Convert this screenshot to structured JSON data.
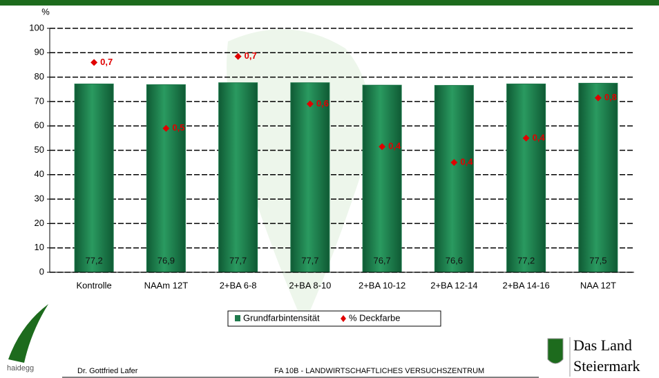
{
  "chart_data": {
    "type": "bar",
    "y_label": "%",
    "categories": [
      "Kontrolle",
      "NAAm 12T",
      "2+BA 6-8",
      "2+BA 8-10",
      "2+BA 10-12",
      "2+BA 12-14",
      "2+BA 14-16",
      "NAA 12T"
    ],
    "series": [
      {
        "name": "Grundfarbintensität",
        "color": "#1f7a4c",
        "values": [
          77.2,
          76.9,
          77.7,
          77.7,
          76.7,
          76.6,
          77.2,
          77.5
        ],
        "value_labels": [
          "77,2",
          "76,9",
          "77,7",
          "77,7",
          "76,7",
          "76,6",
          "77,2",
          "77,5"
        ]
      },
      {
        "name": "% Deckfarbe",
        "color": "#e00000",
        "type": "scatter",
        "values": [
          86,
          59,
          88.5,
          69,
          51.5,
          45,
          55,
          71.5
        ],
        "annotations": [
          "0,7",
          "0,5",
          "0,7",
          "0,6",
          "0,4",
          "0,4",
          "0,4",
          "0,8"
        ]
      }
    ],
    "ylim": [
      0,
      100
    ],
    "yticks": [
      0,
      10,
      20,
      30,
      40,
      50,
      60,
      70,
      80,
      90,
      100
    ],
    "grid": true,
    "legend": "bottom"
  },
  "footer": {
    "author": "Dr. Gottfried Lafer",
    "institute": "FA 10B - LANDWIRTSCHAFTLICHES VERSUCHSZENTRUM",
    "logo_left": "haidegg",
    "logo_right_1": "Das Land",
    "logo_right_2": "Steiermark"
  }
}
